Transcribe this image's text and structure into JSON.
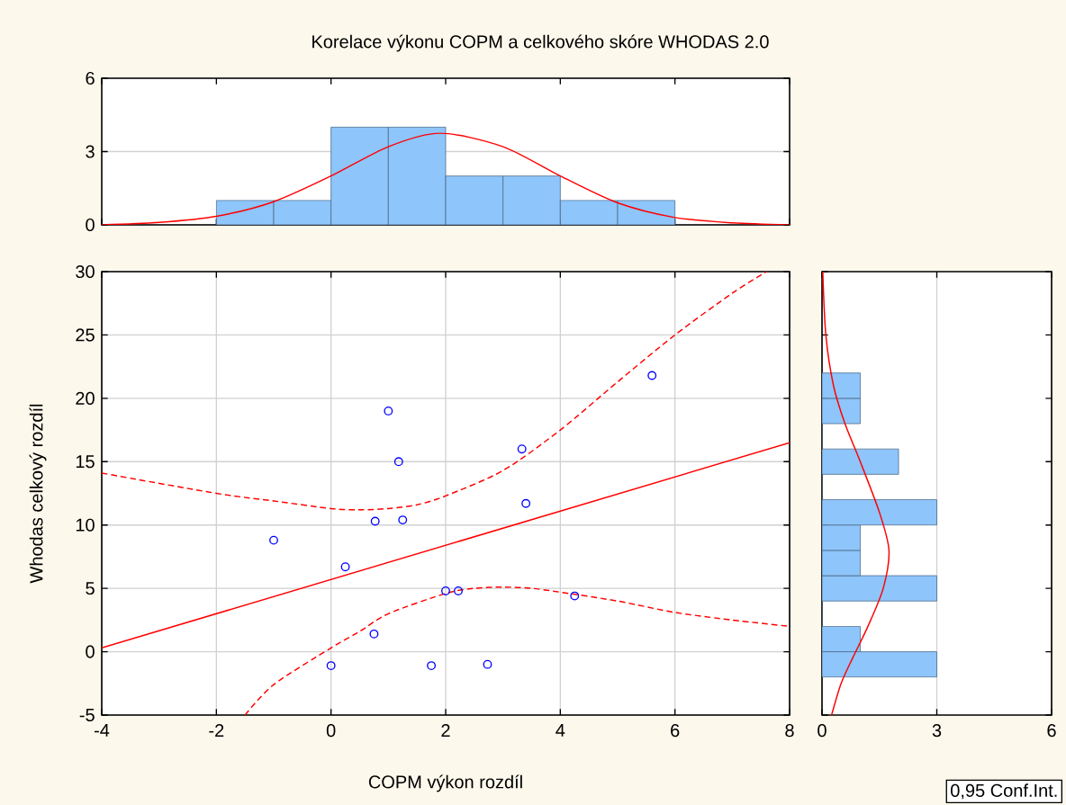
{
  "chart_data": [
    {
      "type": "histogram",
      "title": "Korelace výkonu COPM a celkového skóre WHODAS 2.0",
      "bins": [
        -2,
        -1,
        0,
        1,
        2,
        3,
        4,
        5,
        6
      ],
      "values": [
        1,
        1,
        4,
        4,
        2,
        2,
        1,
        1
      ],
      "color": "#8ec5fb",
      "series": [
        {
          "type": "line",
          "color": "#ff0000",
          "x": [
            -4,
            -3,
            -2,
            -1,
            0,
            1,
            1.9,
            3,
            4,
            5,
            6,
            7,
            8
          ],
          "values": [
            0,
            0.1,
            0.35,
            0.95,
            2.0,
            3.2,
            3.75,
            3.2,
            2.0,
            0.9,
            0.3,
            0.08,
            0
          ]
        }
      ],
      "xlim": [
        -4,
        8
      ],
      "xticks": [
        {
          "value": -4,
          "label": null
        },
        {
          "value": -2,
          "label": null
        },
        {
          "value": 0,
          "label": null
        },
        {
          "value": 2,
          "label": null
        },
        {
          "value": 4,
          "label": null
        },
        {
          "value": 6,
          "label": null
        },
        {
          "value": 8,
          "label": null
        }
      ],
      "ylim": [
        0,
        6
      ],
      "yticks": [
        0,
        3,
        6
      ],
      "grid": "y",
      "tick_labels": "y"
    },
    {
      "type": "scatter",
      "xlabel": "COPM výkon rozdíl",
      "ylabel": "Whodas celkový rozdíl",
      "series": [
        {
          "type": "scatter",
          "color": "#0000ff",
          "marker": "circle",
          "x": [
            -1.0,
            0.25,
            0.77,
            1.0,
            1.18,
            1.25,
            0,
            0.75,
            1.75,
            2.0,
            2.22,
            2.73,
            3.33,
            3.4,
            4.25,
            5.6
          ],
          "values": [
            8.8,
            6.7,
            10.3,
            19.0,
            15.0,
            10.4,
            -1.1,
            1.4,
            -1.1,
            4.8,
            4.8,
            -1.0,
            16.0,
            11.7,
            4.4,
            21.8
          ]
        },
        {
          "type": "line",
          "color": "#ff0000",
          "line_style": "solid",
          "x": [
            -4,
            8
          ],
          "values": [
            0.3,
            16.5
          ]
        },
        {
          "type": "line",
          "color": "#ff0000",
          "line_style": "dashed",
          "x": [
            -4,
            -2,
            -1,
            0,
            0.5,
            1,
            1.5,
            2,
            3,
            4,
            5,
            6,
            7,
            7.6
          ],
          "values": [
            14.1,
            12.5,
            11.9,
            11.3,
            11.2,
            11.3,
            11.6,
            12.3,
            14.3,
            17.5,
            21.3,
            25.0,
            28.3,
            30
          ]
        },
        {
          "type": "line",
          "color": "#ff0000",
          "line_style": "dashed",
          "x": [
            -1.5,
            -1,
            0,
            0.5,
            1,
            2,
            2.5,
            3,
            3.5,
            4,
            5,
            6,
            7,
            8
          ],
          "values": [
            -5,
            -2.6,
            0.3,
            1.6,
            3.0,
            4.6,
            5.0,
            5.1,
            5.0,
            4.7,
            4.0,
            3.1,
            2.5,
            2.0
          ]
        }
      ],
      "xlim": [
        -4,
        8
      ],
      "xticks": [
        -4,
        -2,
        0,
        2,
        4,
        6,
        8
      ],
      "ylim": [
        -5,
        30
      ],
      "yticks": [
        -5,
        0,
        5,
        10,
        15,
        20,
        25,
        30
      ],
      "grid": true,
      "annotations": [
        "0,95 Conf.Int."
      ]
    },
    {
      "type": "histogram",
      "orientation": "horizontal",
      "bins": [
        -2,
        0,
        2,
        4,
        6,
        8,
        10,
        12,
        14,
        16,
        18,
        20,
        22
      ],
      "values": [
        3,
        1,
        0,
        3,
        1,
        1,
        3,
        0,
        2,
        0,
        1,
        1
      ],
      "color": "#8ec5fb",
      "series": [
        {
          "type": "line",
          "color": "#ff0000",
          "x": [
            30,
            25,
            21,
            18,
            15,
            11,
            8,
            5,
            2,
            -0.5,
            -2.5,
            -5
          ],
          "values": [
            0.02,
            0.1,
            0.3,
            0.6,
            1.0,
            1.5,
            1.75,
            1.6,
            1.2,
            0.8,
            0.5,
            0.25
          ]
        }
      ],
      "xlim": [
        0,
        6
      ],
      "xticks": [
        0,
        3,
        6
      ],
      "ylim": [
        -5,
        30
      ],
      "yticks": [
        {
          "value": -5,
          "label": null
        },
        {
          "value": 0,
          "label": null
        },
        {
          "value": 5,
          "label": null
        },
        {
          "value": 10,
          "label": null
        },
        {
          "value": 15,
          "label": null
        },
        {
          "value": 20,
          "label": null
        },
        {
          "value": 25,
          "label": null
        },
        {
          "value": 30,
          "label": null
        }
      ],
      "grid": "x",
      "tick_labels": "x"
    }
  ]
}
